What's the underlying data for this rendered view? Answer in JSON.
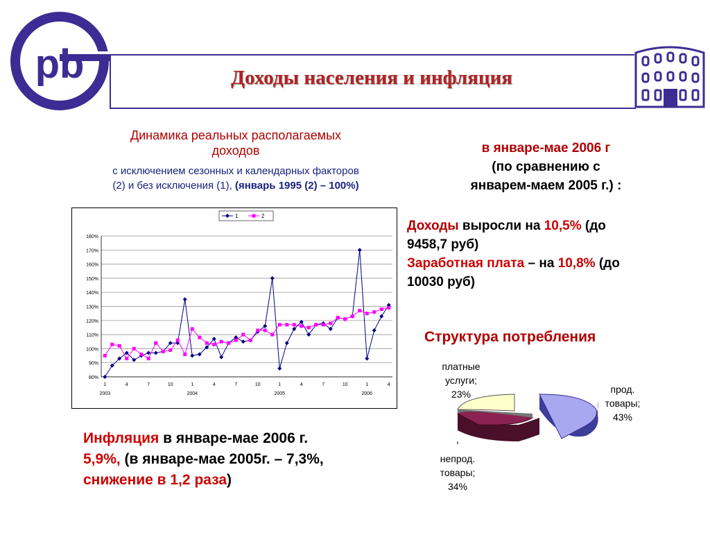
{
  "header": {
    "title": "Доходы населения и инфляция",
    "logo_text": "pb"
  },
  "dynamics": {
    "title_line1": "Динамика реальных располагаемых",
    "title_line2": "доходов",
    "subtitle_line1": "с исключением сезонных и календарных факторов",
    "subtitle_line2_plain": "(2) и без исключения (1), ",
    "subtitle_line2_bold": "(январь 1995 (2) – 100%)"
  },
  "chart_data": {
    "type": "line",
    "title": "",
    "xlabel": "",
    "ylabel": "",
    "ylim": [
      80,
      180
    ],
    "yticks": [
      "80%",
      "90%",
      "100%",
      "110%",
      "120%",
      "130%",
      "140%",
      "150%",
      "160%",
      "170%",
      "180%"
    ],
    "month_ticks": [
      "1",
      "4",
      "7",
      "10",
      "1",
      "4",
      "7",
      "10",
      "1",
      "4",
      "7",
      "10",
      "1",
      "4"
    ],
    "year_labels": [
      "2003",
      "2004",
      "2005",
      "2006"
    ],
    "legend_placement": "top",
    "grid": true,
    "series": [
      {
        "name": "1",
        "color": "#000080",
        "values": [
          80,
          88,
          93,
          97,
          92,
          95,
          97,
          97,
          98,
          104,
          104,
          135,
          95,
          96,
          101,
          107,
          94,
          104,
          108,
          105,
          106,
          112,
          116,
          150,
          86,
          104,
          114,
          119,
          110,
          117,
          118,
          114,
          122,
          121,
          123,
          170,
          93,
          113,
          123,
          131
        ]
      },
      {
        "name": "2",
        "color": "#ff00ff",
        "values": [
          95,
          103,
          102,
          93,
          100,
          96,
          93,
          104,
          98,
          99,
          106,
          96,
          114,
          108,
          104,
          103,
          105,
          104,
          106,
          110,
          106,
          113,
          113,
          110,
          117,
          117,
          117,
          116,
          115,
          117,
          117,
          118,
          122,
          121,
          123,
          127,
          125,
          126,
          128,
          129
        ]
      }
    ]
  },
  "right": {
    "head_line1": "в январе-мае 2006 г",
    "head_line2": "(по сравнению с",
    "head_line3": "январем-маем 2005 г.) :",
    "income_word": "Доходы",
    "income_mid": " выросли на ",
    "income_pct": "10,5%",
    "income_tail": " (до",
    "income_line2": "9458,7 руб)",
    "wage_word": "Заработная плата",
    "wage_mid": " – на ",
    "wage_pct": "10,8%",
    "wage_tail": " (до",
    "wage_line2": "10030 руб)"
  },
  "consumption": {
    "title": "Структура потребления",
    "slices": [
      {
        "label_l1": "прод.",
        "label_l2": "товары;",
        "label_l3": "43%",
        "value": 43,
        "color": "#a8a8f0"
      },
      {
        "label_l1": "непрод.",
        "label_l2": "товары;",
        "label_l3": "34%",
        "value": 34,
        "color": "#8b2252"
      },
      {
        "label_l1": "платные",
        "label_l2": "услуги;",
        "label_l3": "23%",
        "value": 23,
        "color": "#ffffcc"
      }
    ]
  },
  "inflation": {
    "word": "Инфляция",
    "line1_tail": " в январе-мае 2006 г.",
    "pct": "5,9%,",
    "line2_tail": " (в январе-мае 2005г. – 7,3%,",
    "decline": "снижение в 1,2 раза",
    "close": ")"
  }
}
